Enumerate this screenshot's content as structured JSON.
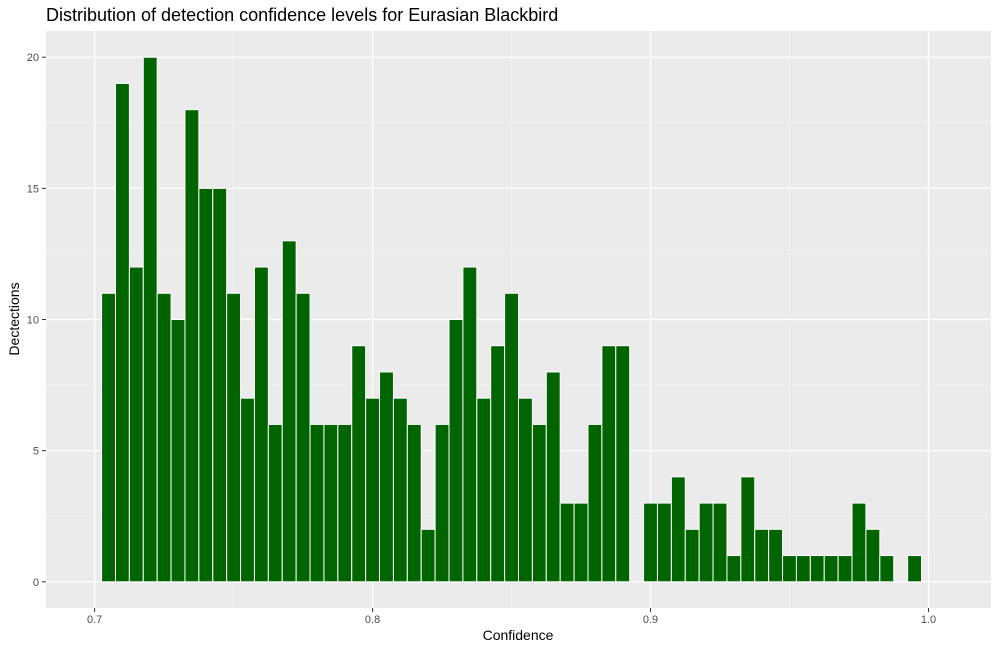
{
  "chart_data": {
    "type": "bar",
    "title": "Distribution of detection confidence levels for Eurasian Blackbird",
    "xlabel": "Confidence",
    "ylabel": "Dectections",
    "bin_width": 0.005,
    "bin_starts": [
      0.7025,
      0.7075,
      0.7125,
      0.7175,
      0.7225,
      0.7275,
      0.7325,
      0.7375,
      0.7425,
      0.7475,
      0.7525,
      0.7575,
      0.7625,
      0.7675,
      0.7725,
      0.7775,
      0.7825,
      0.7875,
      0.7925,
      0.7975,
      0.8025,
      0.8075,
      0.8125,
      0.8175,
      0.8225,
      0.8275,
      0.8325,
      0.8375,
      0.8425,
      0.8475,
      0.8525,
      0.8575,
      0.8625,
      0.8675,
      0.8725,
      0.8775,
      0.8825,
      0.8875,
      0.8975,
      0.9025,
      0.9075,
      0.9125,
      0.9175,
      0.9225,
      0.9275,
      0.9325,
      0.9375,
      0.9425,
      0.9475,
      0.9525,
      0.9575,
      0.9625,
      0.9675,
      0.9725,
      0.9775,
      0.9825,
      0.9925
    ],
    "values": [
      11,
      19,
      12,
      20,
      11,
      10,
      18,
      15,
      15,
      11,
      7,
      12,
      6,
      13,
      11,
      6,
      6,
      6,
      9,
      7,
      8,
      7,
      6,
      2,
      6,
      10,
      12,
      7,
      9,
      11,
      7,
      6,
      8,
      3,
      3,
      6,
      9,
      9,
      3,
      3,
      4,
      2,
      3,
      3,
      1,
      4,
      2,
      2,
      1,
      1,
      1,
      1,
      1,
      3,
      2,
      1,
      1
    ],
    "xlim": [
      0.6825,
      1.0225
    ],
    "ylim": [
      -1,
      21
    ],
    "xticks": [
      0.7,
      0.8,
      0.9,
      1.0
    ],
    "xtick_labels": [
      "0.7",
      "0.8",
      "0.9",
      "1.0"
    ],
    "yticks": [
      0,
      5,
      10,
      15,
      20
    ],
    "ytick_labels": [
      "0",
      "5",
      "10",
      "15",
      "20"
    ],
    "grid": true,
    "colors": {
      "bar_fill": "#006400",
      "bar_outline": "#ffffff",
      "panel_background": "#ebebeb",
      "grid_major": "#ffffff",
      "grid_minor": "#f5f5f5"
    }
  }
}
